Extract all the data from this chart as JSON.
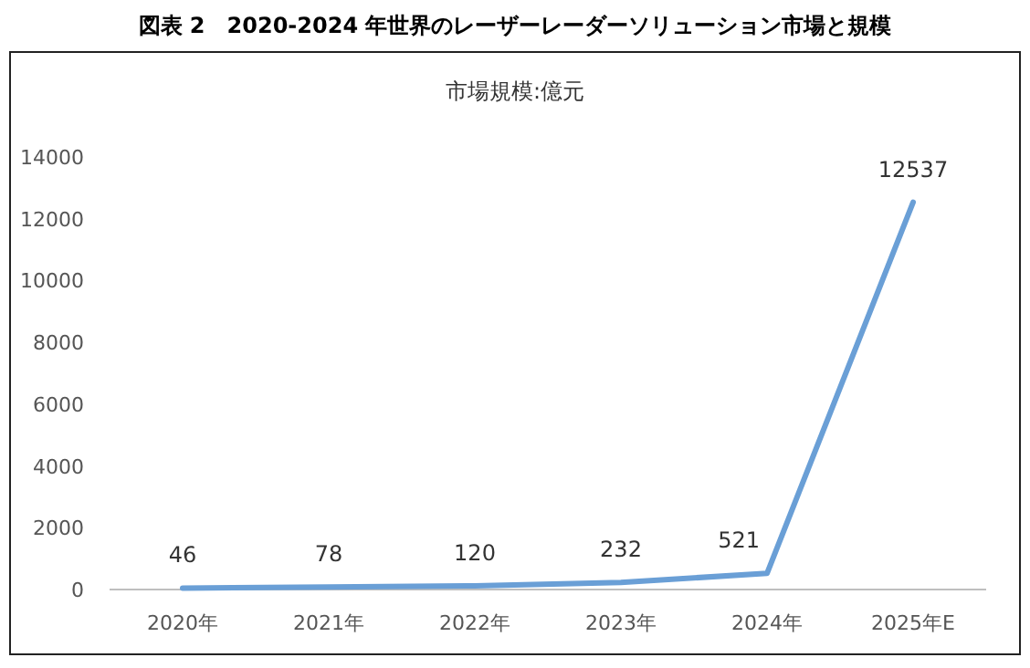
{
  "chart_data": {
    "type": "line",
    "title": "図表 2　2020-2024 年世界のレーザーレーダーソリューション市場と規模",
    "subtitle": "市場規模:億元",
    "categories": [
      "2020年",
      "2021年",
      "2022年",
      "2023年",
      "2024年",
      "2025年E"
    ],
    "values": [
      46,
      78,
      120,
      232,
      521,
      12537
    ],
    "color": "#6a9fd6",
    "ylim": [
      0,
      14000
    ],
    "yticks": [
      0,
      2000,
      4000,
      6000,
      8000,
      10000,
      12000,
      14000
    ],
    "data_labels": true
  }
}
